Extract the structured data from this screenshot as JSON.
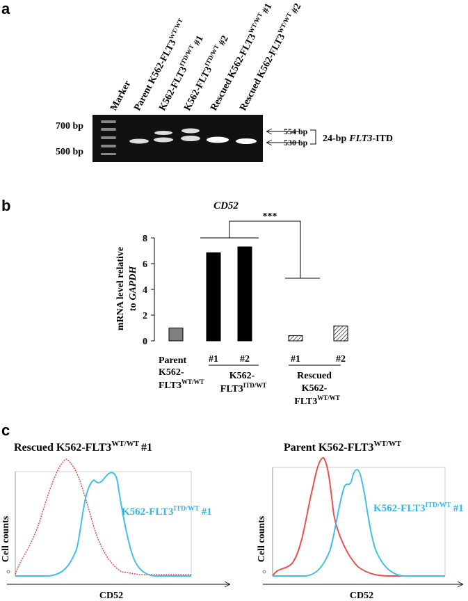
{
  "panel_a": {
    "label": "a",
    "lanes": [
      {
        "text": "Marker"
      },
      {
        "text": "Parent K562-FLT3",
        "sup": "WT/WT"
      },
      {
        "text": "K562-FLT3",
        "sup": "ITD/WT",
        "suffix": "#1"
      },
      {
        "text": "K562-FLT3",
        "sup": "ITD/WT",
        "suffix": "#2"
      },
      {
        "text": "Rescued K562-FLT3",
        "sup": "WT/WT",
        "suffix": "#1"
      },
      {
        "text": "Rescued K562-FLT3",
        "sup": "WT/WT",
        "suffix": "#2"
      }
    ],
    "sizes": [
      "700 bp",
      "500 bp"
    ],
    "bands": [
      "554 bp",
      "530 bp"
    ],
    "annotation": {
      "pre": "24-bp",
      "italic": "FLT3",
      "post": "-ITD"
    }
  },
  "chart_data": {
    "type": "bar",
    "panel_label": "b",
    "title": "CD52",
    "ylabel": {
      "line1": "mRNA level relative",
      "pre": "to",
      "italic": "GAPDH"
    },
    "categories": [
      null,
      "#1",
      "#2",
      "#1",
      "#2"
    ],
    "values": [
      1.0,
      6.85,
      7.3,
      0.4,
      1.15
    ],
    "fills": [
      "#7f7f7f",
      "#000000",
      "#000000",
      "hatch",
      "hatch"
    ],
    "groups": [
      {
        "lines": [
          "Parent",
          "K562-"
        ],
        "base": "FLT3",
        "sup": "WT/WT"
      },
      {
        "lines": [
          "K562-"
        ],
        "base": "FLT3",
        "sup": "ITD/WT"
      },
      {
        "lines": [
          "Rescued",
          "K562-"
        ],
        "base": "FLT3",
        "sup": "WT/WT"
      }
    ],
    "significance": "***",
    "ylim": [
      0,
      8
    ],
    "yticks": [
      0,
      2,
      4,
      6,
      8
    ]
  },
  "panel_c": {
    "label": "c",
    "left": {
      "title": {
        "text": "Rescued K562-FLT3",
        "sup": "WT/WT",
        "suffix": "#1"
      },
      "overlay": {
        "text": "K562-FLT3",
        "sup": "ITD/WT",
        "suffix": "#1"
      },
      "ylabel": "Cell counts",
      "xlabel": "CD52"
    },
    "right": {
      "title": {
        "text": "Parent K562-FLT3",
        "sup": "WT/WT"
      },
      "overlay": {
        "text": "K562-FLT3",
        "sup": "ITD/WT",
        "suffix": "#1"
      },
      "ylabel": "Cell counts",
      "xlabel": "CD52"
    }
  }
}
